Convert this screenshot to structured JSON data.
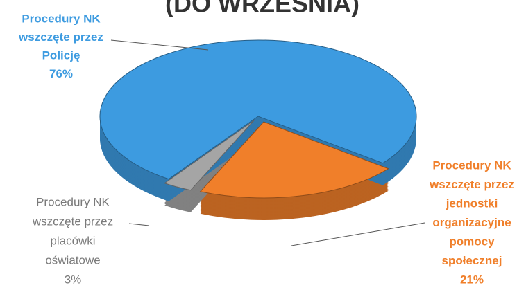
{
  "chart_data": {
    "type": "pie3d",
    "title": "(DO WRZEŚNIA)",
    "categories": [
      [
        "Procedury NK",
        "wszczęte przez",
        "Policję"
      ],
      [
        "Procedury NK",
        "wszczęte przez",
        "jednostki",
        "organizacyjne",
        "pomocy",
        "społecznej"
      ],
      [
        "Procedury NK",
        "wszczęte przez",
        "placówki",
        "oświatowe"
      ]
    ],
    "values": [
      76,
      21,
      3
    ],
    "value_labels": [
      "76%",
      "21%",
      "3%"
    ],
    "colors": [
      "#3d9be0",
      "#f07f2a",
      "#a5a5a5"
    ]
  }
}
